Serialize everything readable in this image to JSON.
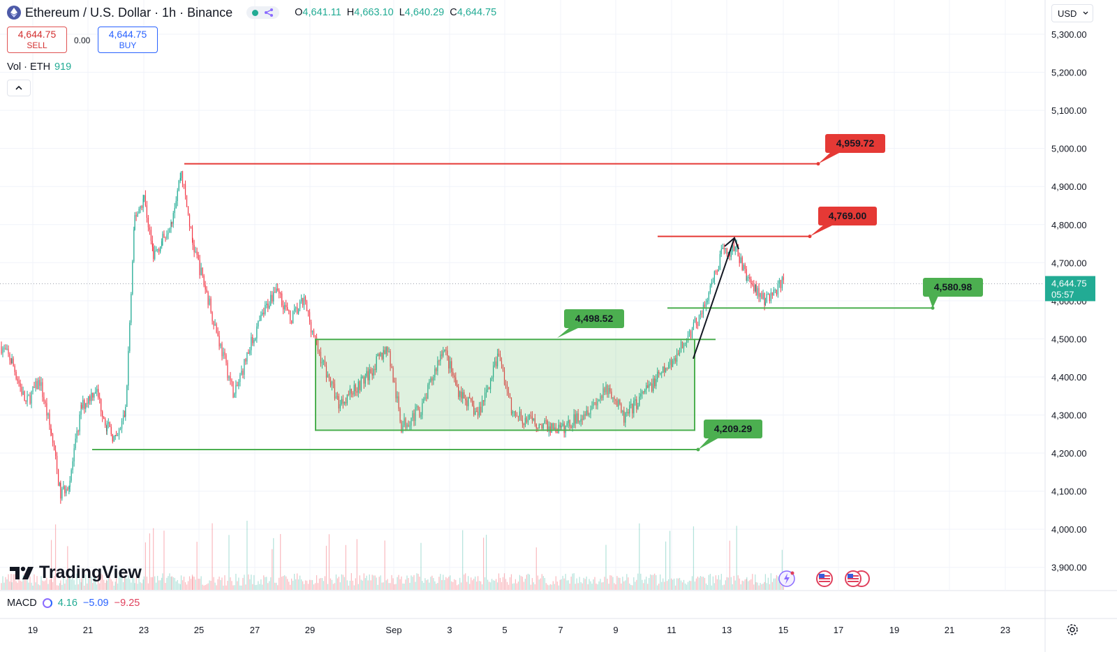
{
  "header": {
    "symbol_title": "Ethereum / U.S. Dollar · 1h · Binance",
    "ohlc": [
      {
        "label": "O",
        "value": "4,641.11"
      },
      {
        "label": "H",
        "value": "4,663.10"
      },
      {
        "label": "L",
        "value": "4,640.29"
      },
      {
        "label": "C",
        "value": "4,644.75"
      }
    ]
  },
  "trade": {
    "sell_price": "4,644.75",
    "sell_label": "SELL",
    "spread": "0.00",
    "buy_price": "4,644.75",
    "buy_label": "BUY"
  },
  "volume": {
    "label": "Vol · ETH",
    "value": "919"
  },
  "currency": "USD",
  "macd": {
    "label": "MACD",
    "values": [
      "4.16",
      "−5.09",
      "−9.25"
    ]
  },
  "branding": "TradingView",
  "colors": {
    "up": "#22ab94",
    "down": "#f23645",
    "support": "#4caf50",
    "resistance": "#e53935"
  },
  "chart_data": {
    "type": "candlestick",
    "price_axis": {
      "ylim": [
        3850,
        5350
      ],
      "ticks": [
        "5,300.00",
        "5,200.00",
        "5,100.00",
        "5,000.00",
        "4,900.00",
        "4,800.00",
        "4,700.00",
        "4,600.00",
        "4,500.00",
        "4,400.00",
        "4,300.00",
        "4,200.00",
        "4,100.00",
        "4,000.00",
        "3,900.00"
      ]
    },
    "time_axis": {
      "ticks": [
        "19",
        "21",
        "23",
        "25",
        "27",
        "29",
        "Sep",
        "3",
        "5",
        "7",
        "9",
        "11",
        "13",
        "15",
        "17",
        "19",
        "21",
        "23"
      ]
    },
    "last_price": {
      "value": "4,644.75",
      "countdown": "05:57"
    },
    "price_path": [
      [
        "Aug 18",
        4480
      ],
      [
        "Aug 18",
        4440
      ],
      [
        "Aug 19",
        4330
      ],
      [
        "Aug 19",
        4390
      ],
      [
        "Aug 20",
        4250
      ],
      [
        "Aug 20",
        4090
      ],
      [
        "Aug 20",
        4130
      ],
      [
        "Aug 21",
        4320
      ],
      [
        "Aug 21",
        4370
      ],
      [
        "Aug 22",
        4270
      ],
      [
        "Aug 22",
        4230
      ],
      [
        "Aug 22",
        4310
      ],
      [
        "Aug 23",
        4820
      ],
      [
        "Aug 23",
        4870
      ],
      [
        "Aug 23",
        4720
      ],
      [
        "Aug 24",
        4760
      ],
      [
        "Aug 24",
        4820
      ],
      [
        "Aug 24",
        4940
      ],
      [
        "Aug 25",
        4750
      ],
      [
        "Aug 25",
        4620
      ],
      [
        "Aug 26",
        4480
      ],
      [
        "Aug 26",
        4350
      ],
      [
        "Aug 27",
        4470
      ],
      [
        "Aug 27",
        4560
      ],
      [
        "Aug 28",
        4640
      ],
      [
        "Aug 28",
        4550
      ],
      [
        "Aug 29",
        4600
      ],
      [
        "Aug 29",
        4470
      ],
      [
        "Aug 30",
        4330
      ],
      [
        "Aug 31",
        4400
      ],
      [
        "Sep 1",
        4480
      ],
      [
        "Sep 1",
        4270
      ],
      [
        "Sep 2",
        4320
      ],
      [
        "Sep 3",
        4480
      ],
      [
        "Sep 3",
        4370
      ],
      [
        "Sep 4",
        4300
      ],
      [
        "Sep 5",
        4460
      ],
      [
        "Sep 5",
        4300
      ],
      [
        "Sep 6",
        4280
      ],
      [
        "Sep 7",
        4260
      ],
      [
        "Sep 8",
        4320
      ],
      [
        "Sep 9",
        4370
      ],
      [
        "Sep 9",
        4290
      ],
      [
        "Sep 10",
        4360
      ],
      [
        "Sep 11",
        4420
      ],
      [
        "Sep 11",
        4470
      ],
      [
        "Sep 12",
        4530
      ],
      [
        "Sep 12",
        4600
      ],
      [
        "Sep 13",
        4720
      ],
      [
        "Sep 13",
        4740
      ],
      [
        "Sep 14",
        4660
      ],
      [
        "Sep 14",
        4630
      ],
      [
        "Sep 14",
        4600
      ],
      [
        "Sep 15",
        4650
      ]
    ],
    "annotations": {
      "resistance_lines": [
        {
          "price": 4959.72,
          "label": "4,959.72"
        },
        {
          "price": 4769.0,
          "label": "4,769.00"
        }
      ],
      "support_lines": [
        {
          "price": 4580.98,
          "label": "4,580.98"
        },
        {
          "price": 4209.29,
          "label": "4,209.29"
        }
      ],
      "range_box": {
        "top": 4498.52,
        "bottom": 4260,
        "top_label": "4,498.52"
      },
      "arrow": {
        "from": 4470,
        "to": 4765
      }
    }
  }
}
